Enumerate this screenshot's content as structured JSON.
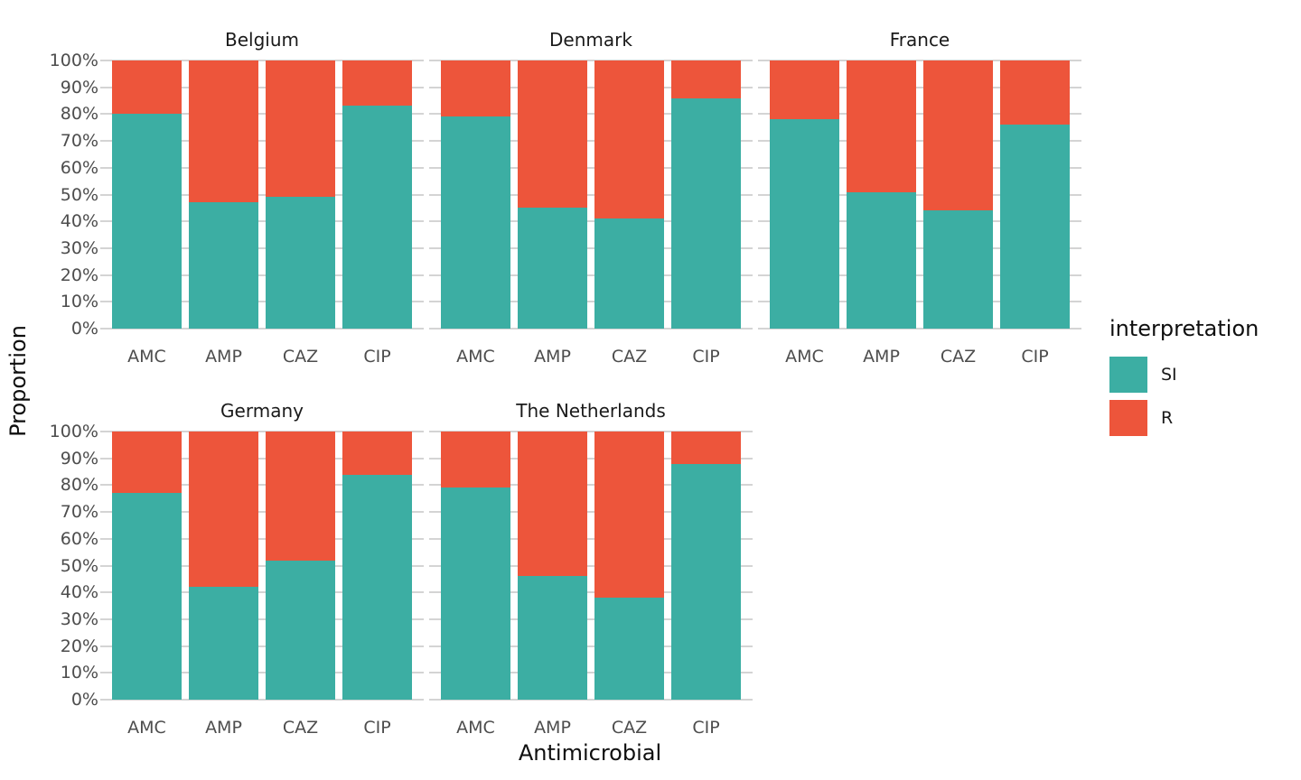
{
  "chart_data": {
    "type": "bar",
    "stacked": true,
    "unit": "percent",
    "title": "",
    "xlabel": "Antimicrobial",
    "ylabel": "Proportion",
    "categories": [
      "AMC",
      "AMP",
      "CAZ",
      "CIP"
    ],
    "y_ticks_percent": [
      100,
      90,
      80,
      70,
      60,
      50,
      40,
      30,
      20,
      10,
      0
    ],
    "y_tick_suffix": "%",
    "ylim": [
      0,
      100
    ],
    "grid": "horizontal",
    "legend": {
      "title": "interpretation",
      "position": "right",
      "items": [
        {
          "label": "SI",
          "color": "#3CAEA3"
        },
        {
          "label": "R",
          "color": "#ED553B"
        }
      ]
    },
    "facets": [
      {
        "title": "Belgium",
        "series": [
          {
            "name": "SI",
            "values": [
              80,
              47,
              49,
              83
            ]
          },
          {
            "name": "R",
            "values": [
              20,
              53,
              51,
              17
            ]
          }
        ]
      },
      {
        "title": "Denmark",
        "series": [
          {
            "name": "SI",
            "values": [
              79,
              45,
              41,
              86
            ]
          },
          {
            "name": "R",
            "values": [
              21,
              55,
              59,
              14
            ]
          }
        ]
      },
      {
        "title": "France",
        "series": [
          {
            "name": "SI",
            "values": [
              78,
              51,
              44,
              76
            ]
          },
          {
            "name": "R",
            "values": [
              22,
              49,
              56,
              24
            ]
          }
        ]
      },
      {
        "title": "Germany",
        "series": [
          {
            "name": "SI",
            "values": [
              77,
              42,
              52,
              84
            ]
          },
          {
            "name": "R",
            "values": [
              23,
              58,
              48,
              16
            ]
          }
        ]
      },
      {
        "title": "The Netherlands",
        "series": [
          {
            "name": "SI",
            "values": [
              79,
              46,
              38,
              88
            ]
          },
          {
            "name": "R",
            "values": [
              21,
              54,
              62,
              12
            ]
          }
        ]
      }
    ]
  }
}
